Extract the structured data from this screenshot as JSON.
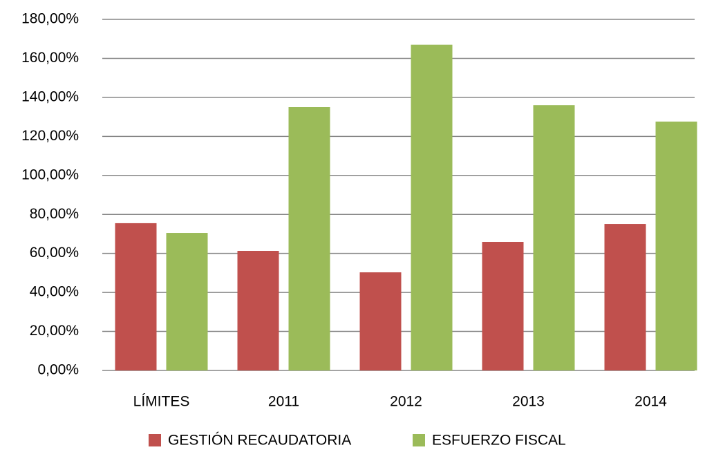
{
  "chart_data": {
    "type": "bar",
    "categories": [
      "LÍMITES",
      "2011",
      "2012",
      "2013",
      "2014"
    ],
    "series": [
      {
        "name": "GESTIÓN RECAUDATORIA",
        "color": "#c0504d",
        "values": [
          75.5,
          61.3,
          50.3,
          65.9,
          75.1
        ]
      },
      {
        "name": "ESFUERZO FISCAL",
        "color": "#9bbb59",
        "values": [
          70.5,
          135,
          167,
          136,
          127.6
        ]
      }
    ],
    "ylim": [
      0,
      180
    ],
    "yticks": [
      {
        "value": 0,
        "label": "0,00%"
      },
      {
        "value": 20,
        "label": "20,00%"
      },
      {
        "value": 40,
        "label": "40,00%"
      },
      {
        "value": 60,
        "label": "60,00%"
      },
      {
        "value": 80,
        "label": "80,00%"
      },
      {
        "value": 100,
        "label": "100,00%"
      },
      {
        "value": 120,
        "label": "120,00%"
      },
      {
        "value": 140,
        "label": "140,00%"
      },
      {
        "value": 160,
        "label": "160,00%"
      },
      {
        "value": 180,
        "label": "180,00%"
      }
    ],
    "grid": true,
    "legend": "bottom"
  }
}
